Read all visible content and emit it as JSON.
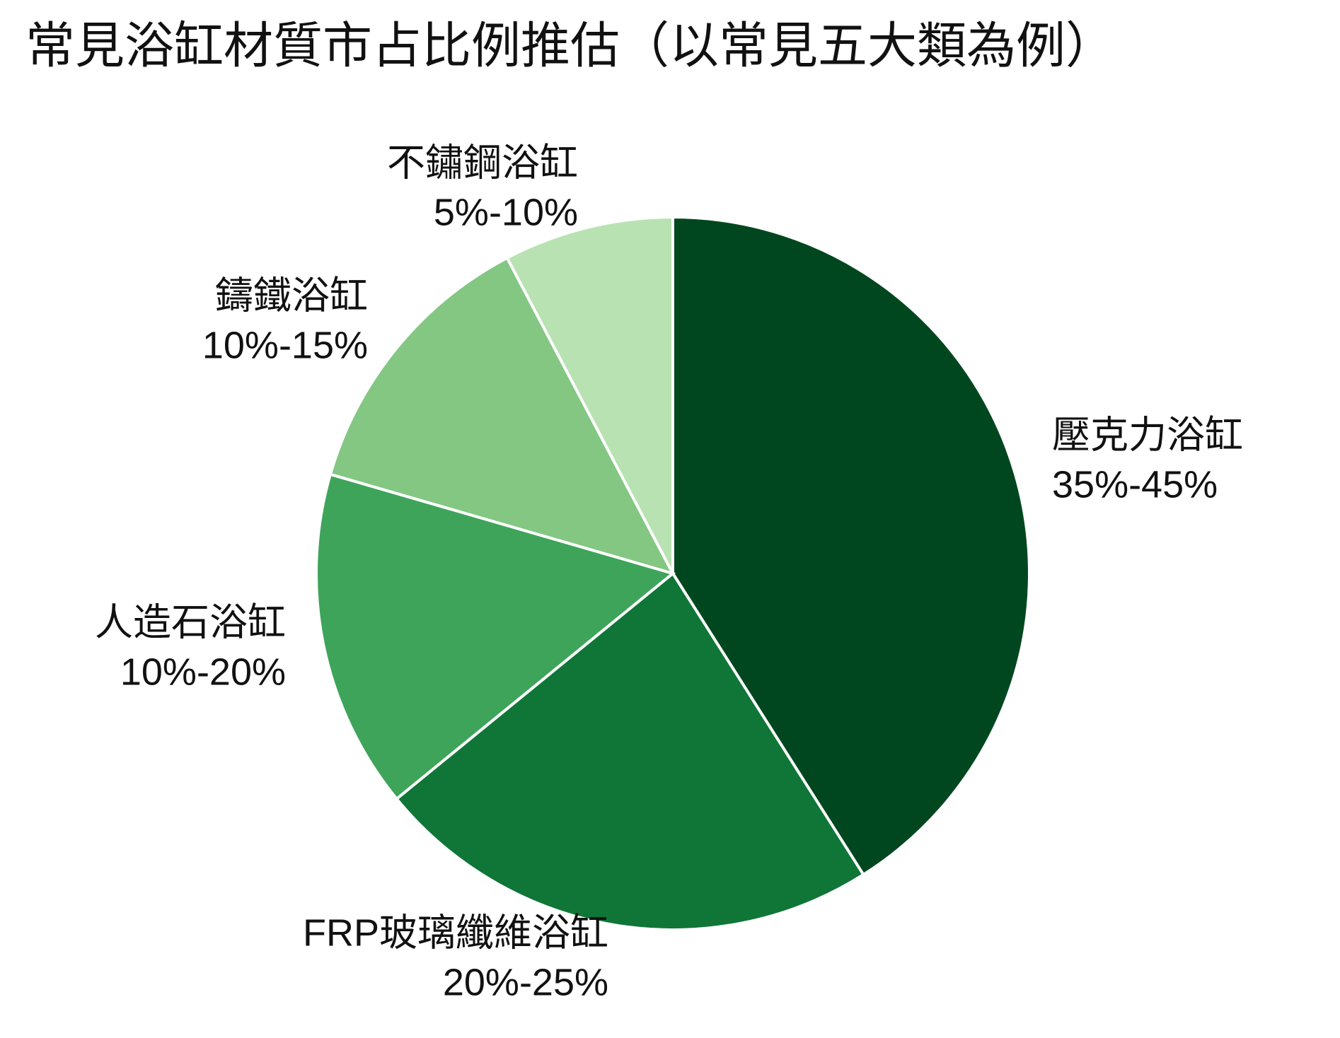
{
  "chart_data": {
    "type": "pie",
    "title": "常見浴缸材質市占比例推估（以常見五大類為例）",
    "categories": [
      "壓克力浴缸",
      "FRP玻璃纖維浴缸",
      "人造石浴缸",
      "鑄鐵浴缸",
      "不鏽鋼浴缸"
    ],
    "values": [
      40,
      22.5,
      15,
      12.5,
      7.5
    ],
    "value_labels": [
      "35%-45%",
      "20%-25%",
      "10%-20%",
      "10%-15%",
      "5%-10%"
    ],
    "colors": [
      "#00471f",
      "#0f7637",
      "#3ea45a",
      "#83c783",
      "#b9e2b3"
    ]
  }
}
